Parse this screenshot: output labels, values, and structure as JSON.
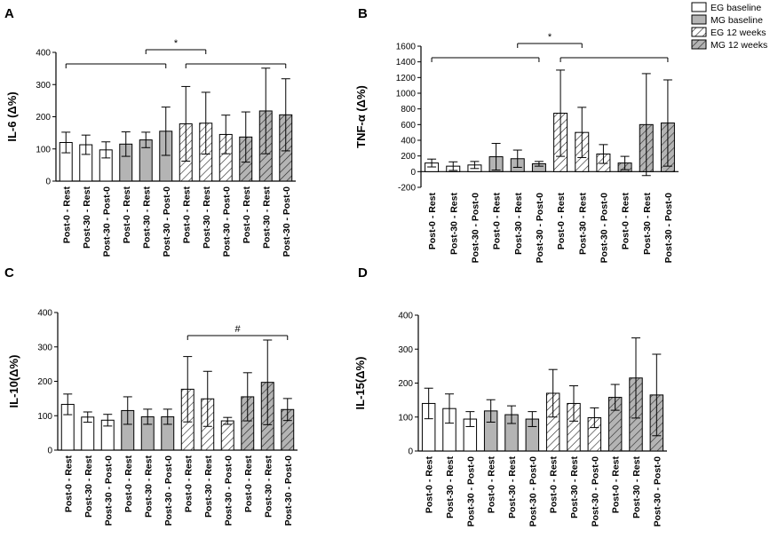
{
  "legend": [
    {
      "label": "EG baseline",
      "fill": "white",
      "hatch": false
    },
    {
      "label": "MG baseline",
      "fill": "#b4b4b4",
      "hatch": false
    },
    {
      "label": "EG 12 weeks",
      "fill": "white",
      "hatch": true
    },
    {
      "label": "MG 12 weeks",
      "fill": "#b4b4b4",
      "hatch": true
    }
  ],
  "categories": [
    "Post-0 - Rest",
    "Post-30 - Rest",
    "Post-30 - Post-0",
    "Post-0 - Rest",
    "Post-30 - Rest",
    "Post-30 - Post-0",
    "Post-0 - Rest",
    "Post-30 - Rest",
    "Post-30 - Post-0",
    "Post-0 - Rest",
    "Post-30 - Rest",
    "Post-30 - Post-0"
  ],
  "bar_groups": [
    "EG baseline",
    "EG baseline",
    "EG baseline",
    "MG baseline",
    "MG baseline",
    "MG baseline",
    "EG 12 weeks",
    "EG 12 weeks",
    "EG 12 weeks",
    "MG 12 weeks",
    "MG 12 weeks",
    "MG 12 weeks"
  ],
  "chart_data": [
    {
      "panel": "A",
      "type": "bar",
      "ylabel": "IL-6 (Δ%)",
      "ylim": [
        0,
        400
      ],
      "yticks": [
        "0",
        "100",
        "200",
        "300",
        "400"
      ],
      "values": [
        120,
        113,
        97,
        115,
        128,
        155,
        178,
        180,
        145,
        137,
        218,
        206
      ],
      "errors": [
        32,
        30,
        25,
        38,
        24,
        75,
        116,
        96,
        60,
        78,
        133,
        112
      ],
      "annotations": [
        {
          "text": "*",
          "from": 4,
          "to": 7,
          "level": 1
        },
        {
          "text": "",
          "from": 0,
          "to": 5,
          "level": 0
        },
        {
          "text": "",
          "from": 6,
          "to": 11,
          "level": 0
        }
      ]
    },
    {
      "panel": "B",
      "type": "bar",
      "ylabel": "TNF-α (Δ%)",
      "ylim": [
        -200,
        1600
      ],
      "yticks": [
        "-200",
        "0",
        "200",
        "400",
        "600",
        "800",
        "1000",
        "1200",
        "1400",
        "1600"
      ],
      "values": [
        110,
        70,
        85,
        190,
        165,
        100,
        745,
        500,
        225,
        110,
        600,
        620
      ],
      "errors": [
        50,
        55,
        45,
        170,
        110,
        30,
        550,
        320,
        120,
        85,
        650,
        550
      ],
      "annotations": [
        {
          "text": "*",
          "from": 4,
          "to": 7,
          "level": 1
        },
        {
          "text": "",
          "from": 0,
          "to": 5,
          "level": 0
        },
        {
          "text": "",
          "from": 6,
          "to": 11,
          "level": 0
        }
      ]
    },
    {
      "panel": "C",
      "type": "bar",
      "ylabel": "IL-10(Δ%)",
      "ylim": [
        0,
        400
      ],
      "yticks": [
        "0",
        "100",
        "200",
        "300",
        "400"
      ],
      "values": [
        133,
        96,
        87,
        115,
        97,
        97,
        177,
        149,
        85,
        155,
        197,
        118
      ],
      "errors": [
        30,
        15,
        17,
        40,
        22,
        22,
        95,
        80,
        10,
        70,
        123,
        32
      ],
      "annotations": [
        {
          "text": "#",
          "from": 6,
          "to": 11,
          "level": 0
        }
      ]
    },
    {
      "panel": "D",
      "type": "bar",
      "ylabel": "IL-15(Δ%)",
      "ylim": [
        0,
        400
      ],
      "yticks": [
        "0",
        "100",
        "200",
        "300",
        "400"
      ],
      "values": [
        140,
        125,
        94,
        118,
        107,
        94,
        170,
        140,
        98,
        158,
        215,
        165
      ],
      "errors": [
        45,
        43,
        22,
        33,
        26,
        22,
        70,
        52,
        29,
        38,
        118,
        120
      ],
      "annotations": []
    }
  ]
}
